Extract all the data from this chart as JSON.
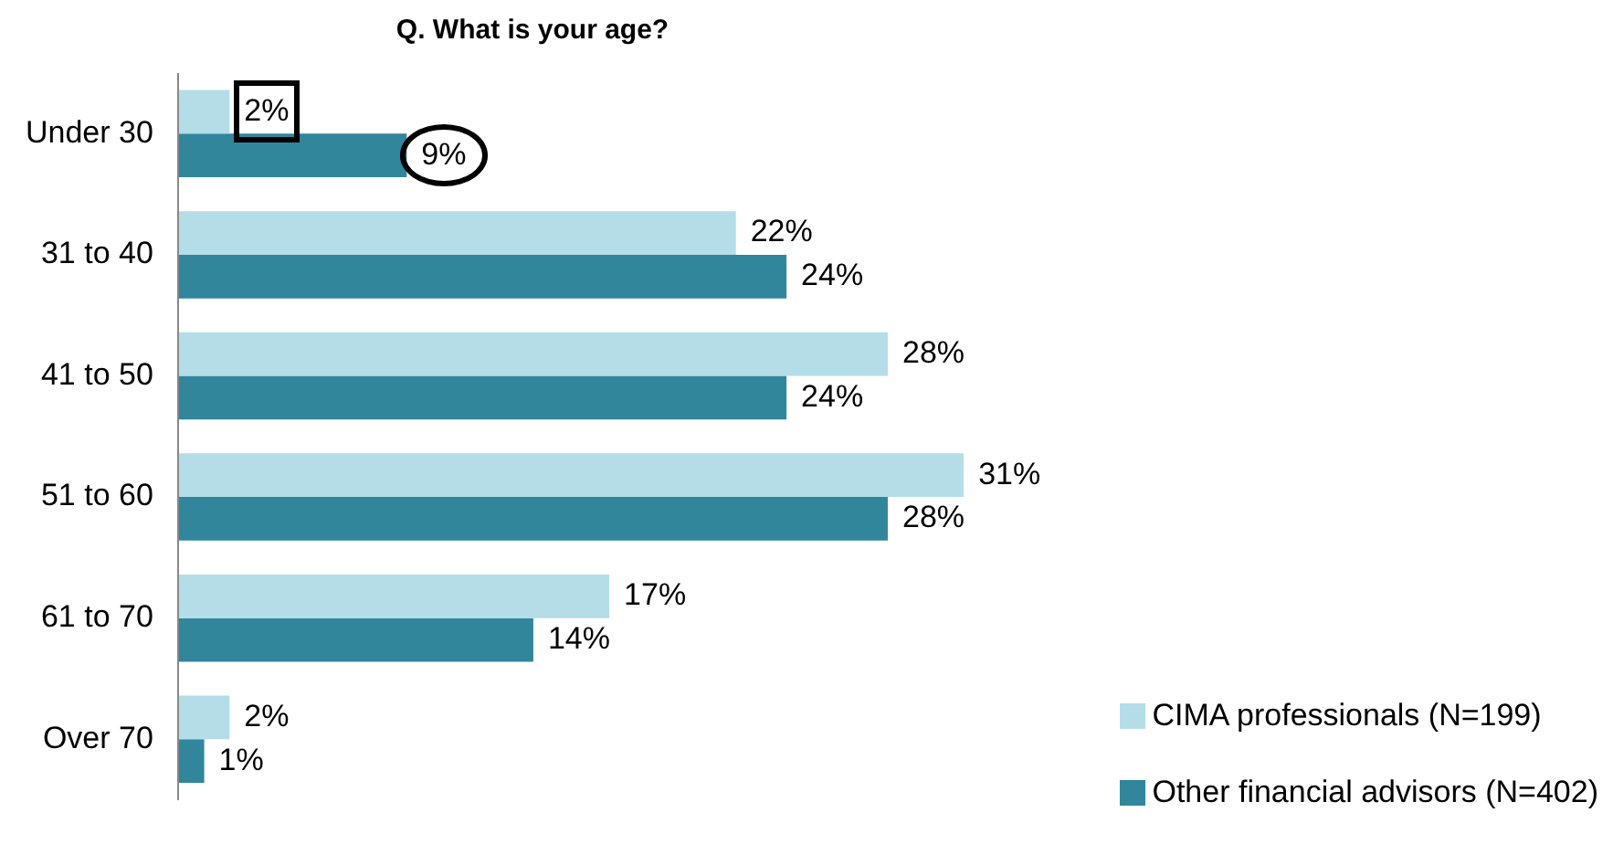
{
  "chart_data": {
    "type": "bar",
    "orientation": "horizontal",
    "title": "Q. What is your age?",
    "categories": [
      "Under 30",
      "31 to 40",
      "41 to 50",
      "51 to 60",
      "61 to 70",
      "Over 70"
    ],
    "series": [
      {
        "name": "CIMA professionals (N=199)",
        "color": "#b4dde8",
        "values": [
          2,
          22,
          28,
          31,
          17,
          2
        ],
        "value_labels": [
          "2%",
          "22%",
          "28%",
          "31%",
          "17%",
          "2%"
        ]
      },
      {
        "name": "Other financial advisors (N=402)",
        "color": "#31869b",
        "values": [
          9,
          24,
          24,
          28,
          14,
          1
        ],
        "value_labels": [
          "9%",
          "24%",
          "24%",
          "28%",
          "14%",
          "1%"
        ]
      }
    ],
    "legend": "bottom right",
    "grid": false
  }
}
